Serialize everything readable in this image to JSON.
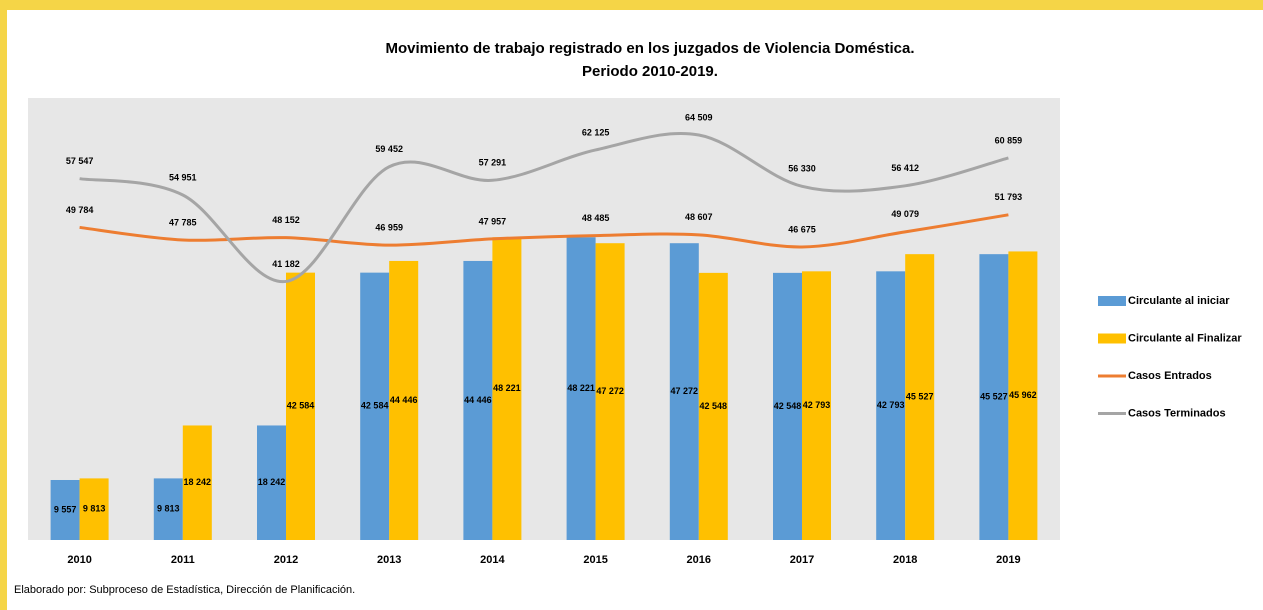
{
  "chart_data": {
    "type": "bar",
    "title": "Movimiento de trabajo registrado en los juzgados de Violencia Doméstica.",
    "subtitle": "Periodo 2010-2019.",
    "footer": "Elaborado por: Subproceso de Estadística, Dirección de Planificación.",
    "categories": [
      "2010",
      "2011",
      "2012",
      "2013",
      "2014",
      "2015",
      "2016",
      "2017",
      "2018",
      "2019"
    ],
    "ylim": [
      0,
      70400
    ],
    "series": [
      {
        "name": "Circulante al iniciar",
        "type": "bar",
        "color": "#5b9bd5",
        "values": [
          9557,
          9813,
          18242,
          42584,
          44446,
          48221,
          47272,
          42548,
          42793,
          45527
        ],
        "value_labels": [
          "9 557",
          "9 813",
          "18 242",
          "42 584",
          "44 446",
          "48 221",
          "47 272",
          "42 548",
          "42 793",
          "45 527"
        ]
      },
      {
        "name": "Circulante al Finalizar",
        "type": "bar",
        "color": "#ffc000",
        "values": [
          9813,
          18242,
          42584,
          44446,
          48221,
          47272,
          42548,
          42793,
          45527,
          45962
        ],
        "value_labels": [
          "9 813",
          "18 242",
          "42 584",
          "44 446",
          "48 221",
          "47 272",
          "42 548",
          "42 793",
          "45 527",
          "45 962"
        ]
      },
      {
        "name": "Casos Entrados",
        "type": "line",
        "color": "#ed7d31",
        "values": [
          49784,
          47785,
          48152,
          46959,
          47957,
          48485,
          48607,
          46675,
          49079,
          51793
        ],
        "value_labels": [
          "49 784",
          "47 785",
          "48 152",
          "46 959",
          "47 957",
          "48 485",
          "48 607",
          "46 675",
          "49 079",
          "51 793"
        ]
      },
      {
        "name": "Casos Terminados",
        "type": "line",
        "color": "#a5a5a5",
        "values": [
          57547,
          54951,
          41182,
          59452,
          57291,
          62125,
          64509,
          56330,
          56412,
          60859
        ],
        "value_labels": [
          "57 547",
          "54 951",
          "41 182",
          "59 452",
          "57 291",
          "62 125",
          "64 509",
          "56 330",
          "56 412",
          "60 859"
        ]
      }
    ]
  }
}
